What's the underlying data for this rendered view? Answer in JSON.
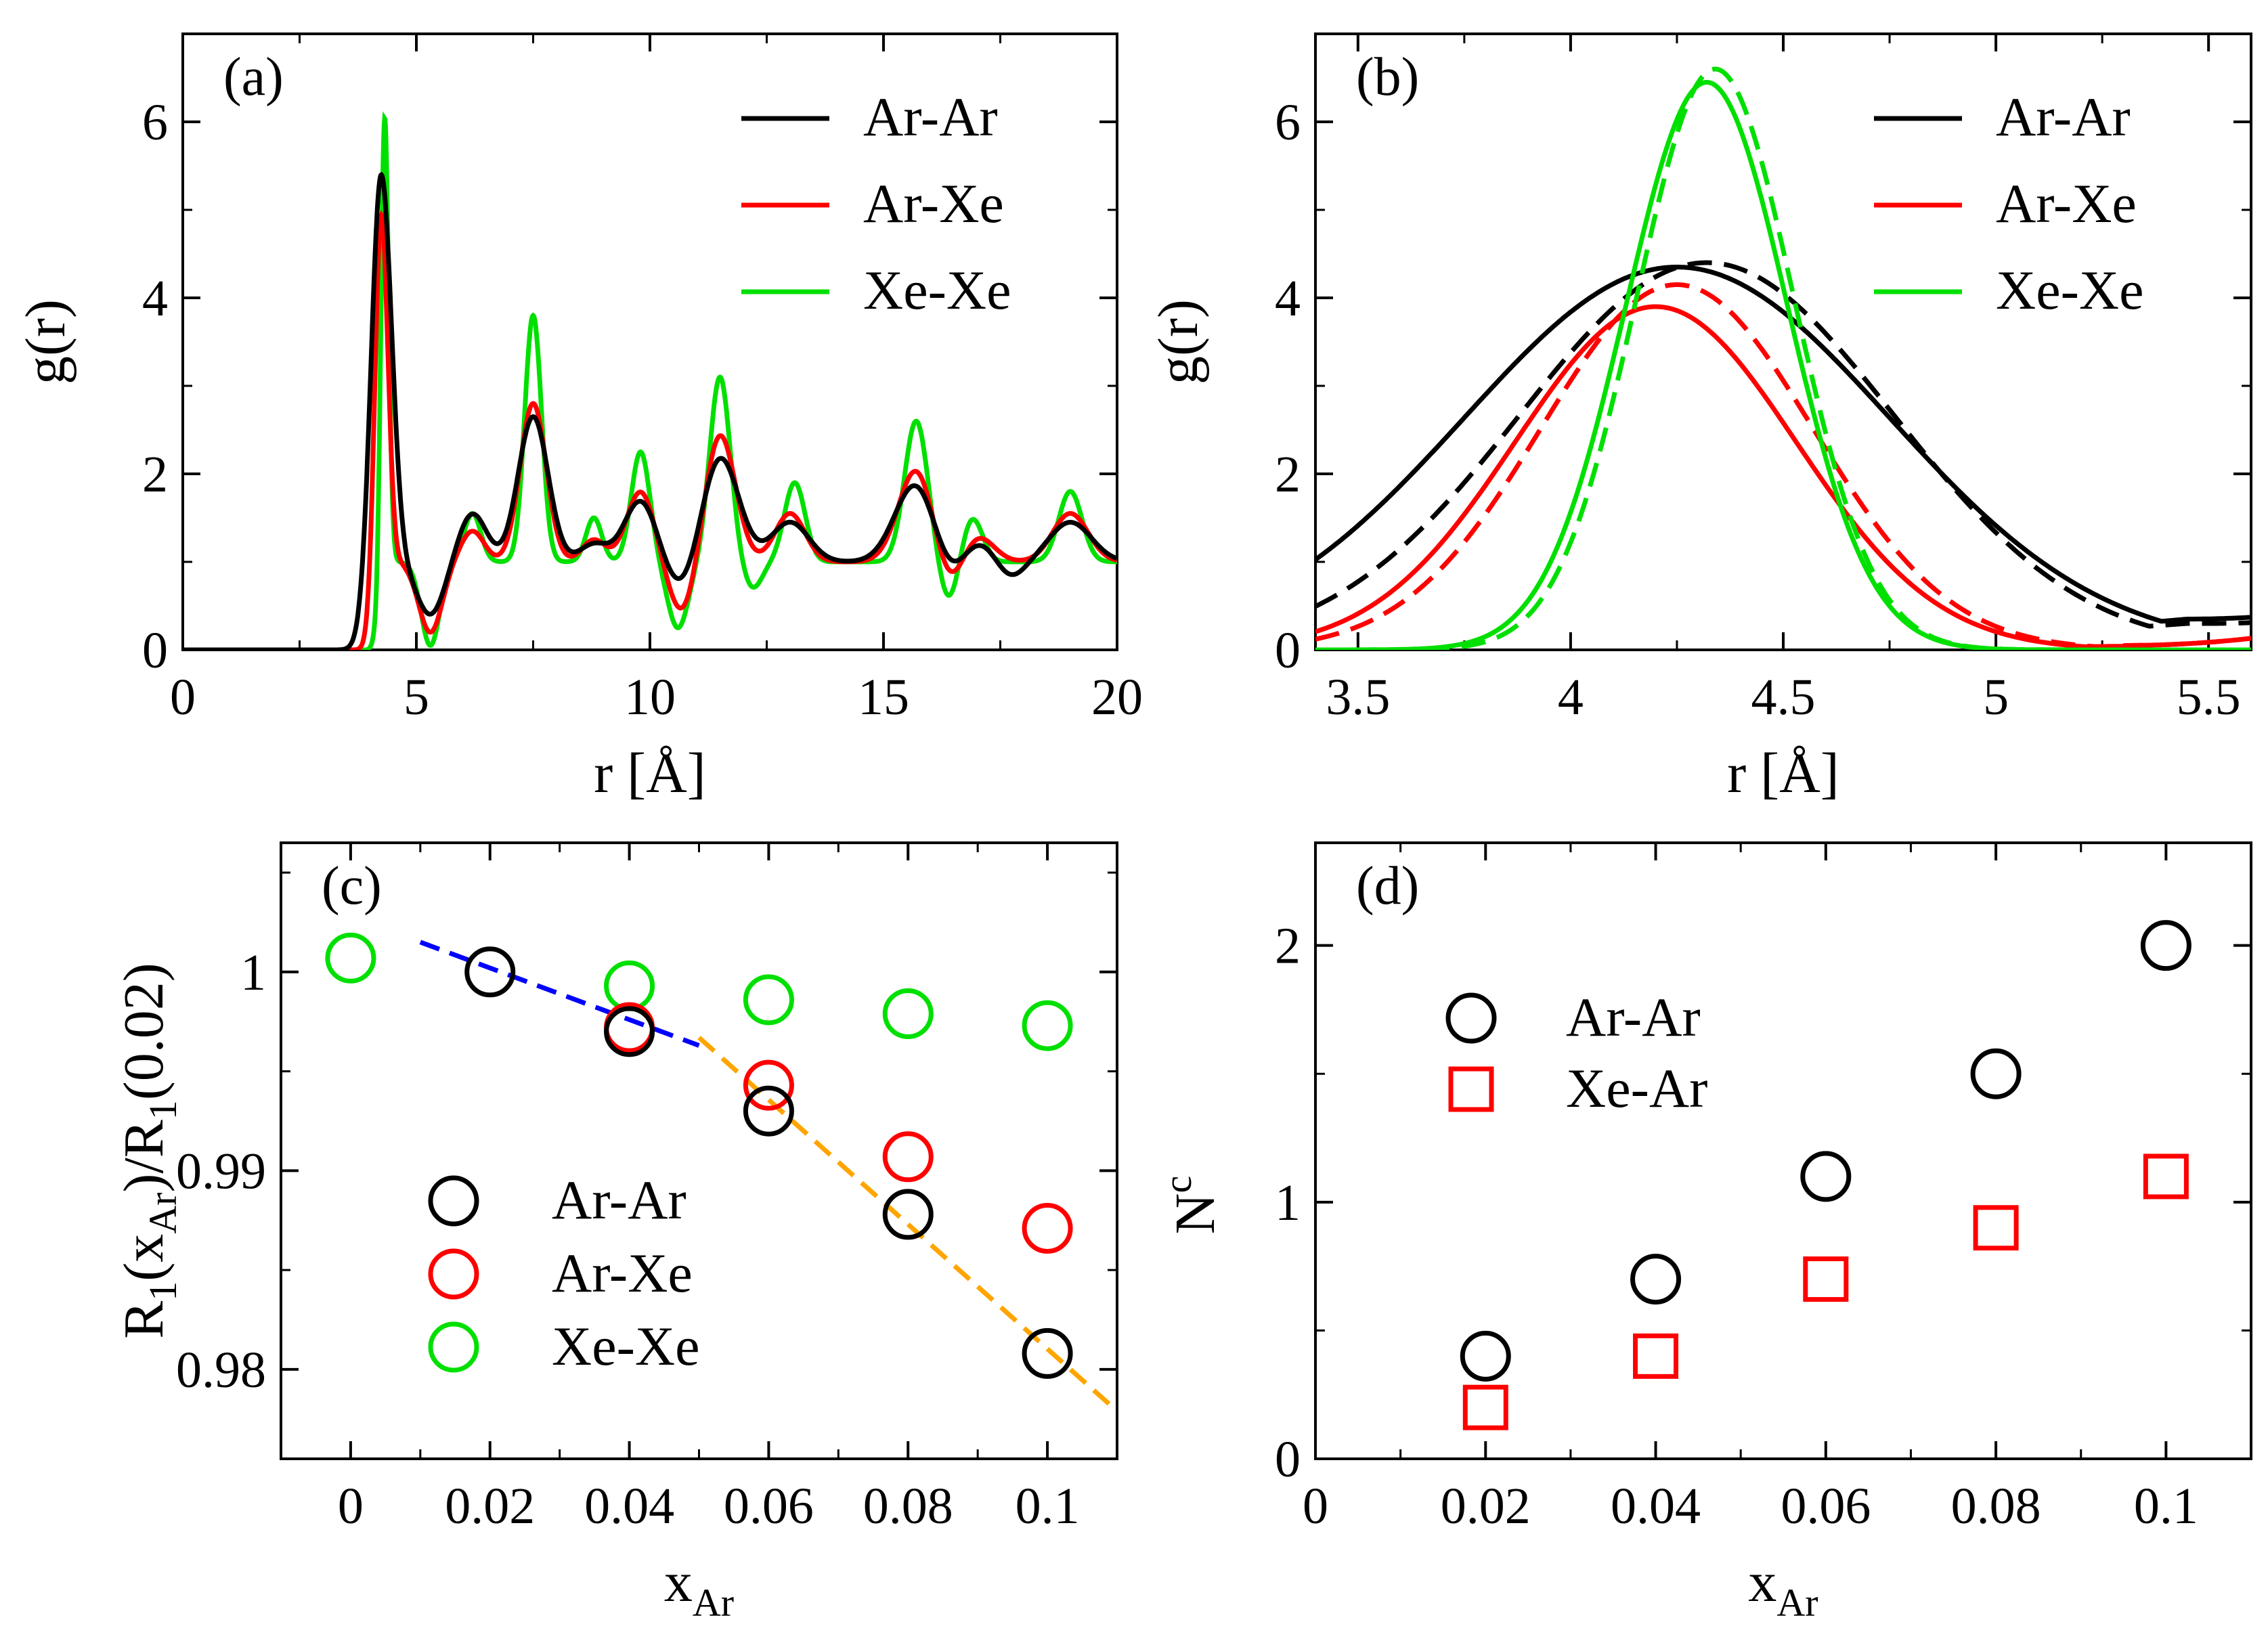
{
  "figure": "four-panel radial distribution and contact analysis",
  "colors": {
    "ArAr": "#000000",
    "ArXe": "#ff0000",
    "XeXe": "#00e000",
    "fitBlue": "#0000ff",
    "fitOrange": "#ffa500"
  },
  "chart_data": [
    {
      "id": "a",
      "type": "line",
      "panel_label": "(a)",
      "xlabel": "r [Å]",
      "ylabel": "g(r)",
      "xlim": [
        0,
        20
      ],
      "ylim": [
        0,
        7
      ],
      "xticks": [
        0,
        5,
        10,
        15,
        20
      ],
      "yticks": [
        0,
        2,
        4,
        6
      ],
      "legend": "top-right",
      "series": [
        {
          "name": "Ar-Ar",
          "color": "#000000",
          "r0": 3.3,
          "peaks": [
            [
              4.25,
              4.4,
              0.22
            ],
            [
              6.2,
              0.55,
              0.3
            ],
            [
              7.5,
              1.65,
              0.32
            ],
            [
              8.8,
              0.2,
              0.3
            ],
            [
              9.8,
              0.7,
              0.35
            ],
            [
              11.5,
              1.2,
              0.4
            ],
            [
              13.0,
              0.45,
              0.4
            ],
            [
              15.7,
              0.9,
              0.45
            ],
            [
              17.0,
              0.25,
              0.4
            ],
            [
              19.0,
              0.45,
              0.45
            ]
          ],
          "troughs": [
            [
              5.3,
              0.6,
              0.3
            ],
            [
              10.7,
              0.35,
              0.35
            ],
            [
              16.4,
              0.3,
              0.35
            ],
            [
              17.7,
              0.2,
              0.3
            ]
          ]
        },
        {
          "name": "Ar-Xe",
          "color": "#ff0000",
          "r0": 3.6,
          "peaks": [
            [
              4.25,
              3.95,
              0.14
            ],
            [
              6.2,
              0.35,
              0.25
            ],
            [
              7.5,
              1.8,
              0.28
            ],
            [
              8.8,
              0.25,
              0.25
            ],
            [
              9.8,
              0.8,
              0.3
            ],
            [
              11.5,
              1.45,
              0.33
            ],
            [
              13.0,
              0.55,
              0.32
            ],
            [
              15.7,
              1.05,
              0.38
            ],
            [
              17.0,
              0.3,
              0.35
            ],
            [
              19.0,
              0.55,
              0.38
            ]
          ],
          "troughs": [
            [
              5.3,
              0.8,
              0.25
            ],
            [
              10.7,
              0.6,
              0.3
            ],
            [
              16.4,
              0.35,
              0.3
            ]
          ]
        },
        {
          "name": "Xe-Xe",
          "color": "#00e000",
          "r0": 3.9,
          "peaks": [
            [
              4.3,
              6.5,
              0.09
            ],
            [
              6.2,
              0.55,
              0.18
            ],
            [
              7.5,
              2.8,
              0.18
            ],
            [
              8.8,
              0.5,
              0.17
            ],
            [
              9.8,
              1.25,
              0.2
            ],
            [
              11.5,
              2.1,
              0.22
            ],
            [
              13.1,
              0.9,
              0.22
            ],
            [
              15.7,
              1.6,
              0.25
            ],
            [
              16.9,
              0.5,
              0.22
            ],
            [
              19.0,
              0.8,
              0.25
            ]
          ],
          "troughs": [
            [
              5.3,
              0.95,
              0.2
            ],
            [
              10.6,
              0.75,
              0.22
            ],
            [
              12.2,
              0.3,
              0.2
            ],
            [
              16.4,
              0.45,
              0.2
            ]
          ]
        }
      ]
    },
    {
      "id": "b",
      "type": "line",
      "panel_label": "(b)",
      "xlabel": "r [Å]",
      "ylabel": "g(r)",
      "xlim": [
        3.4,
        5.6
      ],
      "ylim": [
        0,
        7
      ],
      "xticks": [
        3.5,
        4,
        4.5,
        5,
        5.5
      ],
      "yticks": [
        0,
        2,
        4,
        6
      ],
      "legend": "top-right",
      "series": [
        {
          "name": "Ar-Ar",
          "color": "#000000",
          "style": "solid",
          "center": 4.25,
          "height": 4.35,
          "width": 0.5,
          "floor": 0.0,
          "tail": [
            5.45,
            0.35
          ]
        },
        {
          "name": "Ar-Ar",
          "color": "#000000",
          "style": "dashed",
          "center": 4.32,
          "height": 4.4,
          "width": 0.44,
          "floor": 0.0,
          "tail": [
            5.5,
            0.3
          ]
        },
        {
          "name": "Ar-Xe",
          "color": "#ff0000",
          "style": "solid",
          "center": 4.2,
          "height": 3.9,
          "width": 0.33,
          "floor": 0.0,
          "tail": [
            5.3,
            0.05
          ]
        },
        {
          "name": "Ar-Xe",
          "color": "#ff0000",
          "style": "dashed",
          "center": 4.25,
          "height": 4.15,
          "width": 0.32,
          "floor": 0.0,
          "tail": [
            5.3,
            0.05
          ]
        },
        {
          "name": "Xe-Xe",
          "color": "#00e000",
          "style": "solid",
          "center": 4.32,
          "height": 6.45,
          "width": 0.19,
          "floor": 0.0,
          "tail": [
            5.3,
            0.0
          ]
        },
        {
          "name": "Xe-Xe",
          "color": "#00e000",
          "style": "dashed",
          "center": 4.34,
          "height": 6.6,
          "width": 0.185,
          "floor": 0.0,
          "tail": [
            5.3,
            0.0
          ]
        }
      ]
    },
    {
      "id": "c",
      "type": "scatter",
      "panel_label": "(c)",
      "xlabel": "x",
      "xlabel_sub": "Ar",
      "ylabel": "R₁(x_Ar)/R₁(0.02)",
      "xlim": [
        -0.01,
        0.11
      ],
      "ylim": [
        0.9755,
        1.0065
      ],
      "xticks": [
        0,
        0.02,
        0.04,
        0.06,
        0.08,
        0.1
      ],
      "xticklabels": [
        "0",
        "0.02",
        "0.04",
        "0.06",
        "0.08",
        "0.1"
      ],
      "yticks": [
        0.98,
        0.99,
        1
      ],
      "yticklabels": [
        "0.98",
        "0.99",
        "1"
      ],
      "legend": "bottom-left",
      "series": [
        {
          "name": "Ar-Ar",
          "color": "#000000",
          "marker": "circle",
          "x": [
            0.02,
            0.04,
            0.06,
            0.08,
            0.1
          ],
          "y": [
            1.0,
            0.997,
            0.993,
            0.9878,
            0.9808
          ]
        },
        {
          "name": "Ar-Xe",
          "color": "#ff0000",
          "marker": "circle",
          "x": [
            0.04,
            0.06,
            0.08,
            0.1
          ],
          "y": [
            0.9972,
            0.9943,
            0.9907,
            0.9871
          ]
        },
        {
          "name": "Xe-Xe",
          "color": "#00e000",
          "marker": "circle",
          "x": [
            0.0,
            0.04,
            0.06,
            0.08,
            0.1
          ],
          "y": [
            1.0007,
            0.9993,
            0.9986,
            0.9979,
            0.9973
          ]
        }
      ],
      "fits": [
        {
          "color": "#0000ff",
          "x": [
            0.01,
            0.05
          ],
          "y": [
            1.0015,
            0.9963
          ]
        },
        {
          "color": "#ffa500",
          "x": [
            0.05,
            0.11
          ],
          "y": [
            0.9967,
            0.9779
          ]
        }
      ]
    },
    {
      "id": "d",
      "type": "scatter",
      "panel_label": "(d)",
      "xlabel": "x",
      "xlabel_sub": "Ar",
      "ylabel": "N",
      "ylabel_sup": "c",
      "xlim": [
        0,
        0.11
      ],
      "ylim": [
        0,
        2.4
      ],
      "xticks": [
        0,
        0.02,
        0.04,
        0.06,
        0.08,
        0.1
      ],
      "xticklabels": [
        "0",
        "0.02",
        "0.04",
        "0.06",
        "0.08",
        "0.1"
      ],
      "yticks": [
        0,
        1,
        2
      ],
      "legend": "top-left",
      "series": [
        {
          "name": "Ar-Ar",
          "color": "#000000",
          "marker": "circle",
          "x": [
            0.02,
            0.04,
            0.06,
            0.08,
            0.1
          ],
          "y": [
            0.4,
            0.7,
            1.1,
            1.5,
            2.0
          ]
        },
        {
          "name": "Xe-Ar",
          "color": "#ff0000",
          "marker": "square",
          "x": [
            0.02,
            0.04,
            0.06,
            0.08,
            0.1
          ],
          "y": [
            0.2,
            0.4,
            0.7,
            0.9,
            1.1
          ]
        }
      ]
    }
  ]
}
